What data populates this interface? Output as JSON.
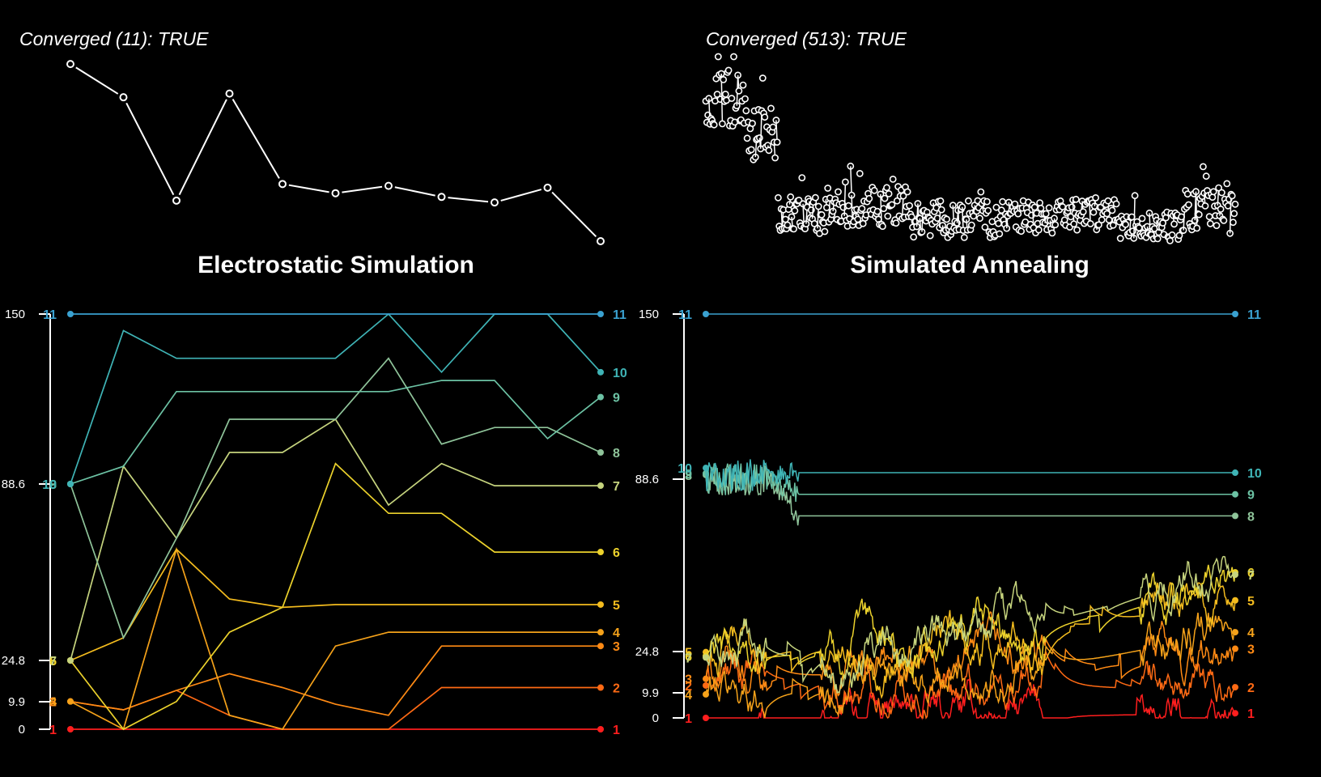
{
  "palette": {
    "1": "#ff1e1e",
    "2": "#ff6a14",
    "3": "#ff8a14",
    "4": "#f5a21a",
    "5": "#f4bc1e",
    "6": "#ecd22c",
    "7": "#c6d47e",
    "8": "#8fc49a",
    "9": "#6cc2a4",
    "10": "#3fb4b6",
    "11": "#3aa1d0"
  },
  "chart_data": [
    {
      "type": "line",
      "panel": "top-left",
      "title": "Converged (11): TRUE",
      "x": [
        1,
        2,
        3,
        4,
        5,
        6,
        7,
        8,
        9,
        10,
        11
      ],
      "values": [
        0.96,
        0.78,
        0.22,
        0.8,
        0.31,
        0.26,
        0.3,
        0.24,
        0.21,
        0.29,
        0.0
      ]
    },
    {
      "type": "scatter",
      "panel": "top-right",
      "title": "Converged (513): TRUE",
      "n_points": 513,
      "segments": [
        {
          "from": 0,
          "to": 40,
          "level": 0.78,
          "spread": 0.16
        },
        {
          "from": 40,
          "to": 70,
          "level": 0.58,
          "spread": 0.14
        },
        {
          "from": 70,
          "to": 120,
          "level": 0.14,
          "spread": 0.1
        },
        {
          "from": 120,
          "to": 200,
          "level": 0.19,
          "spread": 0.11
        },
        {
          "from": 200,
          "to": 300,
          "level": 0.12,
          "spread": 0.1
        },
        {
          "from": 300,
          "to": 350,
          "level": 0.13,
          "spread": 0.09
        },
        {
          "from": 350,
          "to": 400,
          "level": 0.15,
          "spread": 0.09
        },
        {
          "from": 400,
          "to": 460,
          "level": 0.08,
          "spread": 0.08
        },
        {
          "from": 460,
          "to": 513,
          "level": 0.16,
          "spread": 0.12
        }
      ]
    },
    {
      "type": "line",
      "panel": "bottom-left",
      "title": "Electrostatic Simulation",
      "yticks": [
        0,
        9.9,
        24.8,
        88.6,
        150
      ],
      "x": [
        1,
        2,
        3,
        4,
        5,
        6,
        7,
        8,
        9,
        10,
        11
      ],
      "series": [
        {
          "name": "1",
          "values": [
            0,
            0,
            0,
            0,
            0,
            0,
            0,
            0,
            0,
            0,
            0
          ]
        },
        {
          "name": "2",
          "values": [
            10,
            7,
            14,
            5,
            0,
            0,
            0,
            15,
            15,
            15,
            15
          ]
        },
        {
          "name": "3",
          "values": [
            10,
            7,
            14,
            20,
            15,
            9,
            5,
            30,
            30,
            30,
            30
          ]
        },
        {
          "name": "4",
          "values": [
            10,
            0,
            65,
            5,
            0,
            30,
            35,
            35,
            35,
            35,
            35
          ]
        },
        {
          "name": "5",
          "values": [
            24.8,
            33,
            65,
            47,
            44,
            45,
            45,
            45,
            45,
            45,
            45
          ]
        },
        {
          "name": "6",
          "values": [
            24.8,
            0,
            10,
            35,
            44,
            96,
            78,
            78,
            64,
            64,
            64
          ]
        },
        {
          "name": "7",
          "values": [
            24.8,
            95,
            69,
            100,
            100,
            112,
            81,
            96,
            88,
            88,
            88
          ]
        },
        {
          "name": "8",
          "values": [
            88.6,
            33,
            69,
            112,
            112,
            112,
            134,
            103,
            109,
            109,
            100
          ]
        },
        {
          "name": "9",
          "values": [
            88.6,
            95,
            122,
            122,
            122,
            122,
            122,
            126,
            126,
            105,
            120
          ]
        },
        {
          "name": "10",
          "values": [
            88.6,
            144,
            134,
            134,
            134,
            134,
            150,
            129,
            150,
            150,
            129
          ]
        },
        {
          "name": "11",
          "values": [
            150,
            150,
            150,
            150,
            150,
            150,
            150,
            150,
            150,
            150,
            150
          ]
        }
      ]
    },
    {
      "type": "line",
      "panel": "bottom-right",
      "title": "Simulated Annealing",
      "yticks": [
        0,
        9.9,
        24.8,
        88.6,
        150
      ],
      "n_steps": 513,
      "series": [
        {
          "name": "1",
          "start": 0,
          "end": 2
        },
        {
          "name": "2",
          "start": 14,
          "end": 10
        },
        {
          "name": "3",
          "start": 16,
          "end": 23
        },
        {
          "name": "4",
          "start": 9.9,
          "end": 34
        },
        {
          "name": "5",
          "start": 24.8,
          "end": 45
        },
        {
          "name": "6",
          "start": 23,
          "end": 52
        },
        {
          "name": "7",
          "start": 22,
          "end": 58
        },
        {
          "name": "8",
          "start": 88.6,
          "end": 75
        },
        {
          "name": "9",
          "start": 88.6,
          "end": 83
        },
        {
          "name": "10",
          "start": 90,
          "end": 91
        },
        {
          "name": "11",
          "start": 150,
          "end": 150
        }
      ]
    }
  ]
}
